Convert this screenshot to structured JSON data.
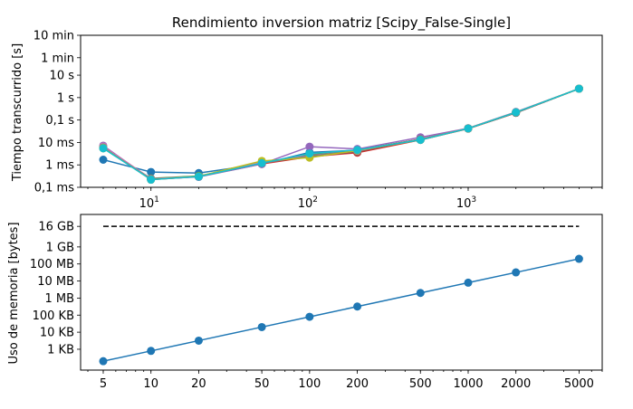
{
  "chart_data": [
    {
      "type": "line",
      "title": "Rendimiento inversion matriz [Scipy_False-Single]",
      "xlabel": "",
      "ylabel": "Tiempo transcurrido [s]",
      "xscale": "log",
      "yscale": "log",
      "xlim": [
        3.6,
        7000
      ],
      "ylim": [
        0.0001,
        600
      ],
      "x_ticks": [
        {
          "value": 10,
          "base": "10",
          "exp": "1"
        },
        {
          "value": 100,
          "base": "10",
          "exp": "2"
        },
        {
          "value": 1000,
          "base": "10",
          "exp": "3"
        }
      ],
      "y_ticks": [
        {
          "value": 0.0001,
          "label": "0,1 ms"
        },
        {
          "value": 0.001,
          "label": "1 ms"
        },
        {
          "value": 0.01,
          "label": "10 ms"
        },
        {
          "value": 0.1,
          "label": "0,1 s"
        },
        {
          "value": 1,
          "label": "1 s"
        },
        {
          "value": 10,
          "label": "10 s"
        },
        {
          "value": 60,
          "label": "1 min"
        },
        {
          "value": 600,
          "label": "10 min"
        }
      ],
      "x": [
        5,
        10,
        20,
        50,
        100,
        200,
        500,
        1000,
        2000,
        5000
      ],
      "series": [
        {
          "color": "#1f77b4",
          "values": [
            0.0017,
            0.00048,
            0.00043,
            0.0011,
            0.0036,
            0.0045,
            0.013,
            0.042,
            0.21,
            2.5
          ]
        },
        {
          "color": "#ff7f0e",
          "values": [
            0.0058,
            0.00023,
            0.00031,
            0.0013,
            0.0025,
            0.0043,
            0.014,
            0.043,
            0.22,
            2.5
          ]
        },
        {
          "color": "#2ca02c",
          "values": [
            0.0055,
            0.00025,
            0.00032,
            0.0012,
            0.0028,
            0.0046,
            0.014,
            0.042,
            0.22,
            2.5
          ]
        },
        {
          "color": "#d62728",
          "values": [
            0.0062,
            0.00022,
            0.0003,
            0.0011,
            0.0023,
            0.0035,
            0.013,
            0.041,
            0.21,
            2.5
          ]
        },
        {
          "color": "#9467bd",
          "values": [
            0.0072,
            0.00023,
            0.00029,
            0.0011,
            0.0065,
            0.0051,
            0.017,
            0.043,
            0.23,
            2.5
          ]
        },
        {
          "color": "#8c564b",
          "values": [
            0.0063,
            0.00024,
            0.0003,
            0.0012,
            0.0024,
            0.0038,
            0.014,
            0.042,
            0.21,
            2.5
          ]
        },
        {
          "color": "#e377c2",
          "values": [
            0.0065,
            0.00024,
            0.00031,
            0.0013,
            0.0026,
            0.0042,
            0.014,
            0.043,
            0.22,
            2.5
          ]
        },
        {
          "color": "#7f7f7f",
          "values": [
            0.006,
            0.00023,
            0.0003,
            0.0012,
            0.0025,
            0.0044,
            0.014,
            0.042,
            0.22,
            2.5
          ]
        },
        {
          "color": "#bcbd22",
          "values": [
            0.0057,
            0.00022,
            0.00031,
            0.0015,
            0.0021,
            0.0044,
            0.013,
            0.042,
            0.22,
            2.5
          ]
        },
        {
          "color": "#17becf",
          "values": [
            0.0055,
            0.00022,
            0.0003,
            0.0012,
            0.0032,
            0.0046,
            0.013,
            0.042,
            0.22,
            2.5
          ]
        }
      ]
    },
    {
      "type": "line",
      "title": "",
      "xlabel": "",
      "ylabel": "Uso de memoria [bytes]",
      "xscale": "log",
      "yscale": "log",
      "xlim": [
        3.6,
        7000
      ],
      "ylim": [
        60,
        80000000000
      ],
      "x_ticks": [
        {
          "value": 5,
          "label": "5"
        },
        {
          "value": 10,
          "label": "10"
        },
        {
          "value": 20,
          "label": "20"
        },
        {
          "value": 50,
          "label": "50"
        },
        {
          "value": 100,
          "label": "100"
        },
        {
          "value": 200,
          "label": "200"
        },
        {
          "value": 500,
          "label": "500"
        },
        {
          "value": 1000,
          "label": "1000"
        },
        {
          "value": 2000,
          "label": "2000"
        },
        {
          "value": 5000,
          "label": "5000"
        }
      ],
      "y_ticks": [
        {
          "value": 1000,
          "label": "1 KB"
        },
        {
          "value": 10000,
          "label": "10 KB"
        },
        {
          "value": 100000,
          "label": "100 KB"
        },
        {
          "value": 1000000,
          "label": "1 MB"
        },
        {
          "value": 10000000,
          "label": "10 MB"
        },
        {
          "value": 100000000,
          "label": "100 MB"
        },
        {
          "value": 1000000000,
          "label": "1 GB"
        },
        {
          "value": 16000000000,
          "label": "16 GB"
        }
      ],
      "x": [
        5,
        10,
        20,
        50,
        100,
        200,
        500,
        1000,
        2000,
        5000
      ],
      "series": [
        {
          "color": "#1f77b4",
          "values": [
            200,
            800,
            3200,
            20000,
            80000,
            320000,
            2000000,
            8000000,
            32000000,
            200000000
          ]
        }
      ],
      "reference_line": {
        "value": 16000000000,
        "color": "#000000",
        "style": "dashed"
      }
    }
  ]
}
